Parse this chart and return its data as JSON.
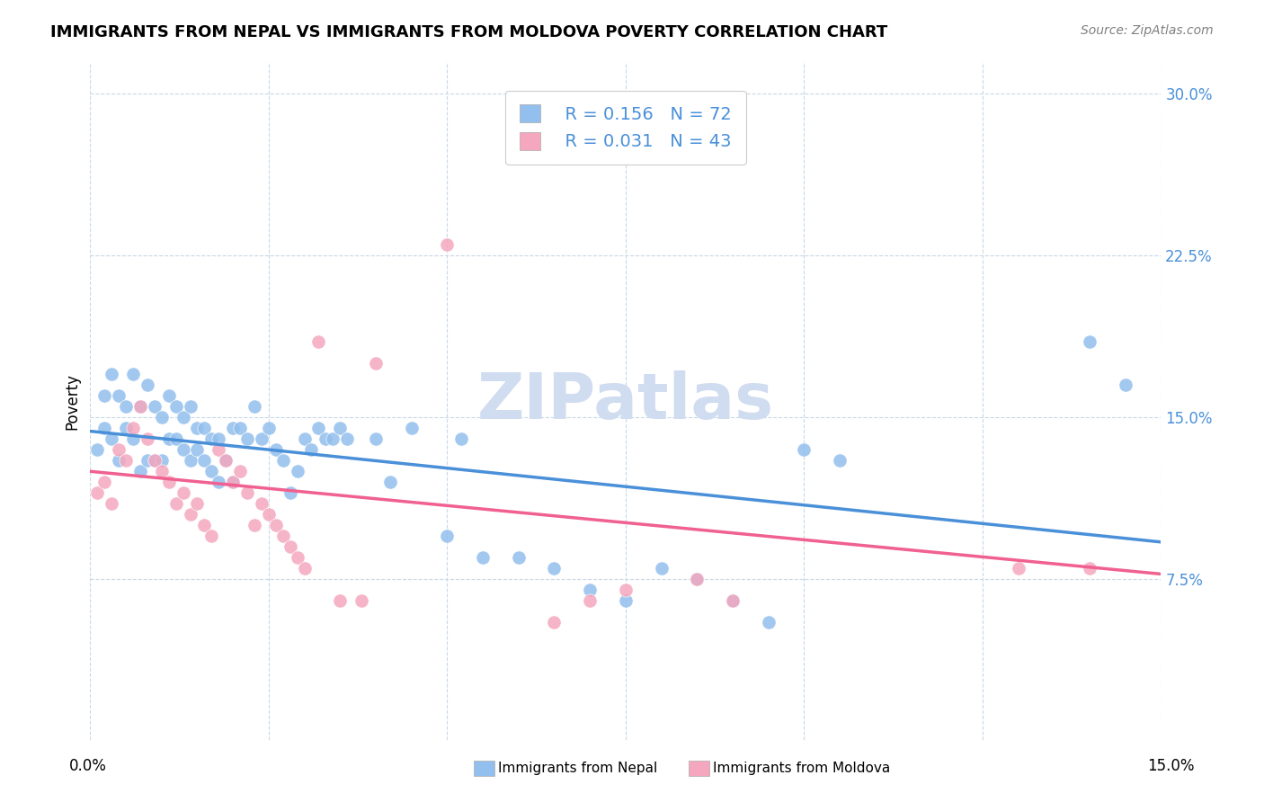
{
  "title": "IMMIGRANTS FROM NEPAL VS IMMIGRANTS FROM MOLDOVA POVERTY CORRELATION CHART",
  "source": "Source: ZipAtlas.com",
  "ylabel": "Poverty",
  "yticks": [
    0.075,
    0.15,
    0.225,
    0.3
  ],
  "ytick_labels": [
    "7.5%",
    "15.0%",
    "22.5%",
    "30.0%"
  ],
  "xmin": 0.0,
  "xmax": 0.15,
  "ymin": 0.0,
  "ymax": 0.315,
  "nepal_color": "#92BFED",
  "moldova_color": "#F4A7BE",
  "nepal_line_color": "#4A90D9",
  "moldova_line_color": "#F06090",
  "watermark": "ZIPatlas",
  "watermark_color": "#D0DCF0",
  "nepal_x": [
    0.001,
    0.002,
    0.002,
    0.003,
    0.003,
    0.004,
    0.004,
    0.005,
    0.005,
    0.006,
    0.006,
    0.007,
    0.007,
    0.008,
    0.008,
    0.009,
    0.009,
    0.01,
    0.01,
    0.011,
    0.011,
    0.012,
    0.012,
    0.013,
    0.013,
    0.014,
    0.014,
    0.015,
    0.015,
    0.016,
    0.016,
    0.017,
    0.017,
    0.018,
    0.018,
    0.019,
    0.02,
    0.02,
    0.021,
    0.022,
    0.023,
    0.024,
    0.025,
    0.026,
    0.027,
    0.028,
    0.029,
    0.03,
    0.031,
    0.032,
    0.033,
    0.034,
    0.035,
    0.036,
    0.04,
    0.042,
    0.045,
    0.05,
    0.052,
    0.055,
    0.06,
    0.065,
    0.07,
    0.075,
    0.08,
    0.085,
    0.09,
    0.095,
    0.1,
    0.105,
    0.14,
    0.145
  ],
  "nepal_y": [
    0.135,
    0.16,
    0.145,
    0.17,
    0.14,
    0.16,
    0.13,
    0.155,
    0.145,
    0.17,
    0.14,
    0.155,
    0.125,
    0.165,
    0.13,
    0.155,
    0.13,
    0.15,
    0.13,
    0.16,
    0.14,
    0.155,
    0.14,
    0.15,
    0.135,
    0.155,
    0.13,
    0.145,
    0.135,
    0.145,
    0.13,
    0.14,
    0.125,
    0.14,
    0.12,
    0.13,
    0.145,
    0.12,
    0.145,
    0.14,
    0.155,
    0.14,
    0.145,
    0.135,
    0.13,
    0.115,
    0.125,
    0.14,
    0.135,
    0.145,
    0.14,
    0.14,
    0.145,
    0.14,
    0.14,
    0.12,
    0.145,
    0.095,
    0.14,
    0.085,
    0.085,
    0.08,
    0.07,
    0.065,
    0.08,
    0.075,
    0.065,
    0.055,
    0.135,
    0.13,
    0.185,
    0.165
  ],
  "moldova_x": [
    0.001,
    0.002,
    0.003,
    0.004,
    0.005,
    0.006,
    0.007,
    0.008,
    0.009,
    0.01,
    0.011,
    0.012,
    0.013,
    0.014,
    0.015,
    0.016,
    0.017,
    0.018,
    0.019,
    0.02,
    0.021,
    0.022,
    0.023,
    0.024,
    0.025,
    0.026,
    0.027,
    0.028,
    0.029,
    0.03,
    0.032,
    0.035,
    0.038,
    0.04,
    0.05,
    0.065,
    0.07,
    0.075,
    0.085,
    0.09,
    0.065,
    0.13,
    0.14
  ],
  "moldova_y": [
    0.115,
    0.12,
    0.11,
    0.135,
    0.13,
    0.145,
    0.155,
    0.14,
    0.13,
    0.125,
    0.12,
    0.11,
    0.115,
    0.105,
    0.11,
    0.1,
    0.095,
    0.135,
    0.13,
    0.12,
    0.125,
    0.115,
    0.1,
    0.11,
    0.105,
    0.1,
    0.095,
    0.09,
    0.085,
    0.08,
    0.185,
    0.065,
    0.065,
    0.175,
    0.23,
    0.055,
    0.065,
    0.07,
    0.075,
    0.065,
    0.27,
    0.08,
    0.08
  ]
}
